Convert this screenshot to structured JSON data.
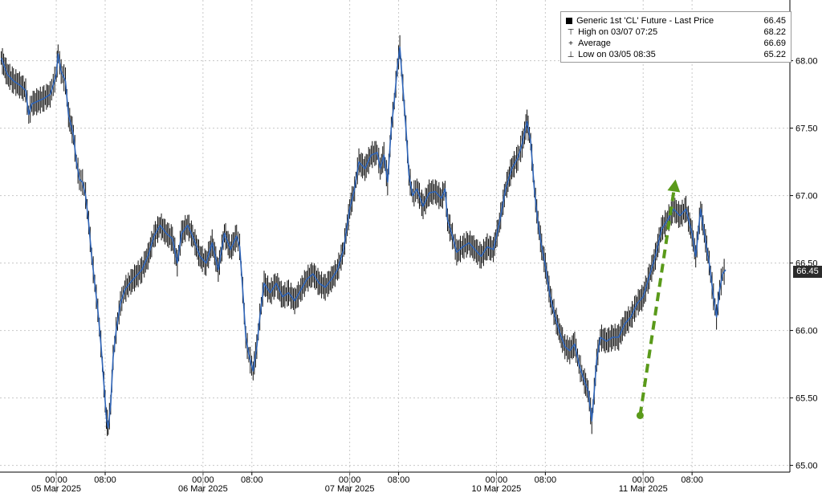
{
  "legend": {
    "title": "Generic 1st 'CL' Future - Last Price",
    "title_value": "66.45",
    "rows": [
      {
        "icon": "high-icon",
        "label": "High on 03/07 07:25",
        "value": "68.22"
      },
      {
        "icon": "average-icon",
        "label": "Average",
        "value": "66.69"
      },
      {
        "icon": "low-icon",
        "label": "Low on 03/05 08:35",
        "value": "65.22"
      }
    ]
  },
  "last_price_tag": "66.45",
  "colors": {
    "line": "#2e64b8",
    "candle": "#111111",
    "arrow": "#5a9a1a",
    "grid": "#c8c8c8",
    "tag": "#2b2b2b"
  },
  "chart_data": {
    "type": "line",
    "title": "",
    "xlabel": "",
    "ylabel": "",
    "ylim": [
      64.95,
      68.45
    ],
    "y_ticks": [
      "65.00",
      "65.50",
      "66.00",
      "66.50",
      "67.00",
      "67.50",
      "68.00"
    ],
    "y_tick_values": [
      65.0,
      65.5,
      66.0,
      66.5,
      67.0,
      67.5,
      68.0
    ],
    "x_ticks": [
      {
        "time": "00:00",
        "date": "05 Mar 2025",
        "t": 0
      },
      {
        "time": "08:00",
        "t": 8
      },
      {
        "time": "00:00",
        "date": "06 Mar 2025",
        "t": 24
      },
      {
        "time": "08:00",
        "t": 32
      },
      {
        "time": "00:00",
        "date": "07 Mar 2025",
        "t": 48
      },
      {
        "time": "08:00",
        "t": 56
      },
      {
        "time": "00:00",
        "date": "10 Mar 2025",
        "t": 72
      },
      {
        "time": "08:00",
        "t": 80
      },
      {
        "time": "00:00",
        "date": "11 Mar 2025",
        "t": 96
      },
      {
        "time": "08:00",
        "t": 104
      }
    ],
    "x_units": "hours from 05 Mar 2025 00:00 (trading time, weekend gap collapsed)",
    "xlim": [
      -9.2,
      120
    ],
    "series": [
      {
        "name": "Generic 1st 'CL' Future - Last Price",
        "points": [
          [
            -9.0,
            68.02
          ],
          [
            -8.0,
            67.9
          ],
          [
            -7.0,
            67.85
          ],
          [
            -6.0,
            67.82
          ],
          [
            -5.0,
            67.78
          ],
          [
            -4.5,
            67.6
          ],
          [
            -4.0,
            67.68
          ],
          [
            -3.0,
            67.7
          ],
          [
            -2.0,
            67.72
          ],
          [
            -1.0,
            67.75
          ],
          [
            -0.5,
            67.82
          ],
          [
            0.0,
            67.9
          ],
          [
            0.3,
            68.05
          ],
          [
            0.8,
            67.92
          ],
          [
            1.5,
            67.85
          ],
          [
            2.0,
            67.6
          ],
          [
            2.8,
            67.45
          ],
          [
            3.3,
            67.25
          ],
          [
            3.8,
            67.12
          ],
          [
            4.3,
            67.1
          ],
          [
            4.8,
            67.0
          ],
          [
            5.3,
            66.8
          ],
          [
            5.8,
            66.55
          ],
          [
            6.3,
            66.35
          ],
          [
            6.8,
            66.15
          ],
          [
            7.3,
            65.9
          ],
          [
            7.8,
            65.6
          ],
          [
            8.2,
            65.35
          ],
          [
            8.5,
            65.28
          ],
          [
            8.9,
            65.45
          ],
          [
            9.3,
            65.8
          ],
          [
            9.8,
            66.0
          ],
          [
            10.5,
            66.2
          ],
          [
            11.2,
            66.3
          ],
          [
            12.0,
            66.35
          ],
          [
            13.0,
            66.4
          ],
          [
            14.0,
            66.45
          ],
          [
            15.0,
            66.55
          ],
          [
            16.0,
            66.7
          ],
          [
            17.0,
            66.78
          ],
          [
            18.0,
            66.72
          ],
          [
            19.0,
            66.68
          ],
          [
            19.8,
            66.5
          ],
          [
            20.5,
            66.72
          ],
          [
            21.5,
            66.78
          ],
          [
            22.5,
            66.68
          ],
          [
            23.5,
            66.55
          ],
          [
            24.5,
            66.5
          ],
          [
            25.5,
            66.65
          ],
          [
            26.5,
            66.45
          ],
          [
            27.5,
            66.72
          ],
          [
            28.5,
            66.6
          ],
          [
            29.5,
            66.7
          ],
          [
            30.0,
            66.62
          ],
          [
            30.5,
            66.3
          ],
          [
            31.0,
            65.95
          ],
          [
            31.5,
            65.82
          ],
          [
            32.2,
            65.7
          ],
          [
            32.8,
            65.88
          ],
          [
            33.3,
            66.1
          ],
          [
            34.0,
            66.35
          ],
          [
            35.0,
            66.28
          ],
          [
            36.0,
            66.35
          ],
          [
            37.0,
            66.25
          ],
          [
            38.0,
            66.28
          ],
          [
            39.0,
            66.22
          ],
          [
            40.0,
            66.3
          ],
          [
            41.0,
            66.38
          ],
          [
            42.0,
            66.42
          ],
          [
            43.0,
            66.35
          ],
          [
            44.0,
            66.32
          ],
          [
            45.0,
            66.38
          ],
          [
            46.0,
            66.45
          ],
          [
            47.0,
            66.6
          ],
          [
            48.0,
            66.9
          ],
          [
            48.8,
            67.05
          ],
          [
            49.5,
            67.25
          ],
          [
            50.5,
            67.2
          ],
          [
            51.5,
            67.3
          ],
          [
            52.5,
            67.32
          ],
          [
            53.0,
            67.2
          ],
          [
            53.6,
            67.3
          ],
          [
            54.2,
            67.1
          ],
          [
            54.8,
            67.5
          ],
          [
            55.3,
            67.7
          ],
          [
            55.8,
            67.95
          ],
          [
            56.2,
            68.1
          ],
          [
            56.7,
            67.8
          ],
          [
            57.2,
            67.5
          ],
          [
            57.7,
            67.15
          ],
          [
            58.3,
            67.0
          ],
          [
            59.0,
            67.05
          ],
          [
            60.0,
            66.92
          ],
          [
            61.0,
            67.02
          ],
          [
            62.0,
            67.03
          ],
          [
            63.0,
            66.98
          ],
          [
            63.6,
            67.05
          ],
          [
            64.0,
            66.82
          ],
          [
            64.8,
            66.7
          ],
          [
            65.5,
            66.58
          ],
          [
            66.5,
            66.62
          ],
          [
            67.5,
            66.65
          ],
          [
            68.5,
            66.6
          ],
          [
            69.5,
            66.55
          ],
          [
            70.5,
            66.62
          ],
          [
            71.5,
            66.6
          ],
          [
            72.5,
            66.8
          ],
          [
            73.5,
            67.05
          ],
          [
            74.5,
            67.2
          ],
          [
            75.5,
            67.28
          ],
          [
            76.2,
            67.38
          ],
          [
            77.0,
            67.55
          ],
          [
            77.6,
            67.4
          ],
          [
            78.2,
            67.05
          ],
          [
            78.8,
            66.8
          ],
          [
            79.4,
            66.62
          ],
          [
            80.0,
            66.48
          ],
          [
            80.8,
            66.25
          ],
          [
            81.6,
            66.1
          ],
          [
            82.4,
            65.98
          ],
          [
            83.2,
            65.88
          ],
          [
            84.0,
            65.85
          ],
          [
            84.8,
            65.9
          ],
          [
            85.5,
            65.75
          ],
          [
            86.2,
            65.65
          ],
          [
            87.0,
            65.55
          ],
          [
            87.6,
            65.33
          ],
          [
            88.0,
            65.55
          ],
          [
            88.4,
            65.78
          ],
          [
            89.0,
            65.95
          ],
          [
            90.0,
            65.92
          ],
          [
            91.0,
            65.95
          ],
          [
            92.0,
            65.95
          ],
          [
            93.0,
            66.05
          ],
          [
            94.0,
            66.1
          ],
          [
            95.0,
            66.2
          ],
          [
            96.0,
            66.25
          ],
          [
            97.0,
            66.4
          ],
          [
            98.0,
            66.55
          ],
          [
            99.0,
            66.75
          ],
          [
            100.0,
            66.82
          ],
          [
            101.0,
            66.9
          ],
          [
            102.0,
            66.85
          ],
          [
            103.0,
            66.9
          ],
          [
            104.0,
            66.72
          ],
          [
            104.6,
            66.55
          ],
          [
            105.4,
            66.9
          ],
          [
            106.0,
            66.72
          ],
          [
            106.8,
            66.5
          ],
          [
            107.5,
            66.25
          ],
          [
            108.0,
            66.1
          ],
          [
            108.5,
            66.3
          ],
          [
            109.0,
            66.42
          ],
          [
            109.5,
            66.45
          ]
        ]
      }
    ],
    "annotations": [
      {
        "type": "arrow",
        "from": [
          95.5,
          65.37
        ],
        "to": [
          101.3,
          67.12
        ],
        "style": "dashed"
      }
    ]
  }
}
